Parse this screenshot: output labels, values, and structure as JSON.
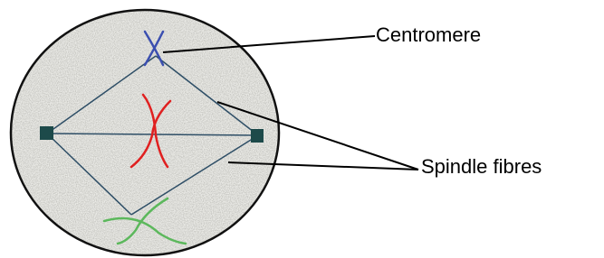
{
  "labels": {
    "centromere": "Centromere",
    "spindle_fibres": "Spindle fibres"
  }
}
